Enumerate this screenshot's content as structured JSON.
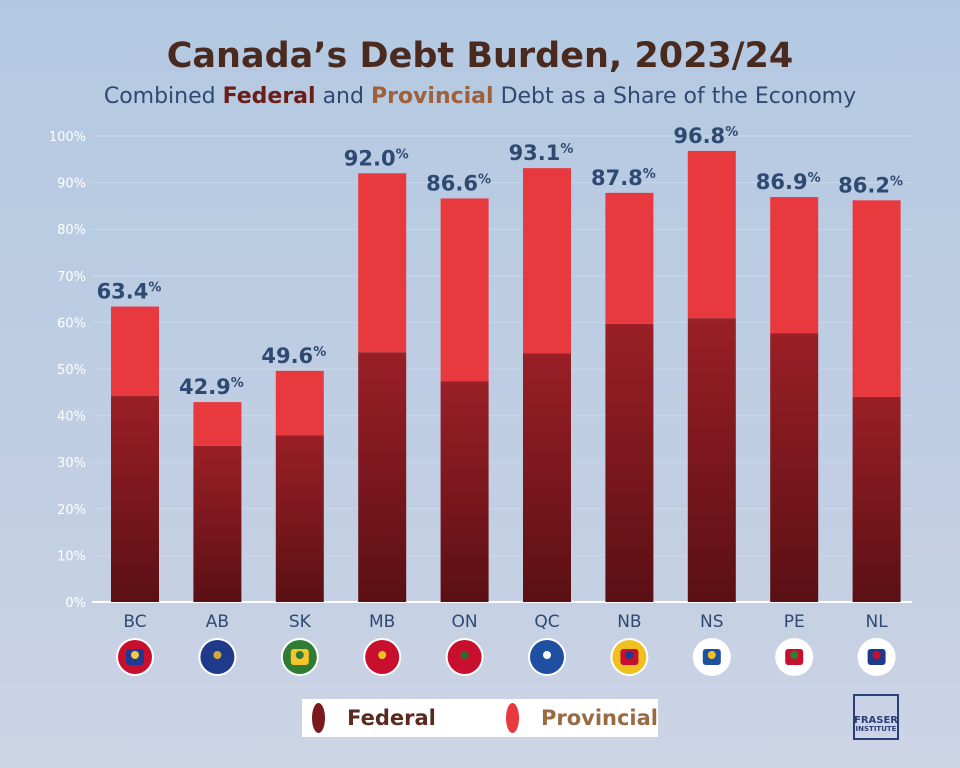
{
  "title": "Canada’s Debt Burden, 2023/24",
  "subtitle": {
    "pre": "Combined ",
    "federal": "Federal",
    "mid": " and ",
    "provincial": "Provincial",
    "post": " Debt as a Share of the Economy"
  },
  "legend": {
    "federal": "Federal",
    "provincial": "Provincial"
  },
  "logo": {
    "line1": "FRASER",
    "line2": "INSTITUTE"
  },
  "colors": {
    "federal": "#8b1c22",
    "provincial": "#e8393f",
    "label": "#2f4a72"
  },
  "chart_data": {
    "type": "bar",
    "stacked": true,
    "title": "Canada’s Debt Burden, 2023/24",
    "ylim": [
      0,
      100
    ],
    "yticks": [
      "0%",
      "10%",
      "20%",
      "30%",
      "40%",
      "50%",
      "60%",
      "70%",
      "80%",
      "90%",
      "100%"
    ],
    "grid": true,
    "legend_position": "bottom",
    "categories": [
      "BC",
      "AB",
      "SK",
      "MB",
      "ON",
      "QC",
      "NB",
      "NS",
      "PE",
      "NL"
    ],
    "totals": [
      "63.4",
      "42.9",
      "49.6",
      "92.0",
      "86.6",
      "93.1",
      "87.8",
      "96.8",
      "86.9",
      "86.2"
    ],
    "series": [
      {
        "name": "Federal",
        "values": [
          44.2,
          33.5,
          35.8,
          53.6,
          47.4,
          53.4,
          59.7,
          60.9,
          57.7,
          44.0
        ]
      },
      {
        "name": "Provincial",
        "values": [
          19.2,
          9.4,
          13.8,
          38.4,
          39.2,
          39.7,
          28.1,
          35.9,
          29.2,
          42.2
        ]
      }
    ],
    "flags": [
      "bc-flag-icon",
      "ab-flag-icon",
      "sk-flag-icon",
      "mb-flag-icon",
      "on-flag-icon",
      "qc-flag-icon",
      "nb-flag-icon",
      "ns-flag-icon",
      "pe-flag-icon",
      "nl-flag-icon"
    ]
  }
}
